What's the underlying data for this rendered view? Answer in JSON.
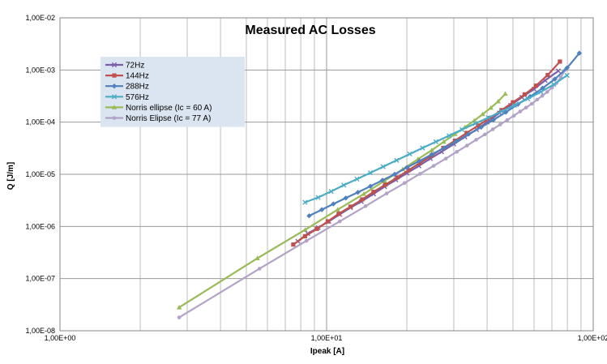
{
  "chart_data": {
    "type": "line",
    "title": "Measured AC Losses",
    "xlabel": "Ipeak [A]",
    "ylabel": "Q [J/m]",
    "xscale": "log",
    "yscale": "log",
    "xlim": [
      1,
      100
    ],
    "ylim": [
      1e-08,
      0.01
    ],
    "x_tick_labels": [
      "1,00E+00",
      "1,00E+01",
      "1,00E+02"
    ],
    "y_tick_labels": [
      "1,00E-08",
      "1,00E-07",
      "1,00E-06",
      "1,00E-05",
      "1,00E-04",
      "1,00E-03",
      "1,00E-02"
    ],
    "grid": true,
    "legend_position": "upper-left inside plot",
    "series": [
      {
        "name": "72Hz",
        "color": "#7B5EA7",
        "marker": "x",
        "x": [
          7.8,
          8.5,
          9.3,
          10.2,
          11.2,
          12.3,
          13.5,
          15.0,
          16.5,
          18.2,
          20.0,
          22.2,
          24.5,
          27.0,
          30.0,
          33.0,
          36.5,
          40.0,
          44.5,
          49.0,
          54.0,
          60.0,
          66.0,
          74.0
        ],
        "y": [
          5.2e-07,
          7.3e-07,
          9.5e-07,
          1.25e-06,
          1.7e-06,
          2.3e-06,
          3e-06,
          4.2e-06,
          5.8e-06,
          7.8e-06,
          1.05e-05,
          1.45e-05,
          2e-05,
          2.7e-05,
          3.8e-05,
          5.2e-05,
          7.2e-05,
          0.0001,
          0.00015,
          0.00021,
          0.0003,
          0.00043,
          0.00063,
          0.00096
        ]
      },
      {
        "name": "144Hz",
        "color": "#C0504D",
        "marker": "square",
        "x": [
          7.5,
          8.3,
          9.2,
          10.1,
          11.1,
          12.3,
          13.6,
          15.0,
          16.6,
          18.4,
          20.3,
          22.4,
          24.8,
          27.4,
          30.3,
          33.5,
          37.0,
          41.0,
          45.3,
          50.0,
          55.3,
          61.0,
          67.5,
          75.0
        ],
        "y": [
          4.5e-07,
          6.5e-07,
          9e-07,
          1.25e-06,
          1.75e-06,
          2.4e-06,
          3.3e-06,
          4.6e-06,
          6.3e-06,
          8.7e-06,
          1.2e-05,
          1.65e-05,
          2.3e-05,
          3.2e-05,
          4.4e-05,
          6.2e-05,
          8.6e-05,
          0.00012,
          0.00017,
          0.00024,
          0.00034,
          0.0005,
          0.0008,
          0.00145
        ]
      },
      {
        "name": "288Hz",
        "color": "#4F81BD",
        "marker": "diamond",
        "x": [
          8.6,
          9.6,
          10.6,
          11.8,
          13.1,
          14.6,
          16.2,
          18.0,
          20.0,
          22.3,
          24.8,
          27.6,
          30.7,
          34.1,
          38.0,
          42.2,
          47.0,
          52.2,
          58.0,
          64.6,
          71.8,
          79.8,
          88.7
        ],
        "y": [
          1.6e-06,
          2.1e-06,
          2.7e-06,
          3.5e-06,
          4.5e-06,
          5.9e-06,
          7.7e-06,
          1e-05,
          1.35e-05,
          1.8e-05,
          2.4e-05,
          3.2e-05,
          4.3e-05,
          5.9e-05,
          8e-05,
          0.00011,
          0.000155,
          0.00022,
          0.00031,
          0.00045,
          0.00067,
          0.0011,
          0.0021
        ]
      },
      {
        "name": "576Hz",
        "color": "#4BACC6",
        "marker": "x",
        "x": [
          8.3,
          9.3,
          10.4,
          11.6,
          13.0,
          14.6,
          16.3,
          18.3,
          20.5,
          22.9,
          25.7,
          28.8,
          32.2,
          36.1,
          40.4,
          45.3,
          50.7,
          56.8,
          63.6,
          71.2,
          79.8
        ],
        "y": [
          2.9e-06,
          3.6e-06,
          4.7e-06,
          6.2e-06,
          8.1e-06,
          1.07e-05,
          1.4e-05,
          1.85e-05,
          2.45e-05,
          3.2e-05,
          4.2e-05,
          5.5e-05,
          7.2e-05,
          9.4e-05,
          0.000122,
          0.00016,
          0.00021,
          0.00028,
          0.00038,
          0.00053,
          0.00079
        ]
      },
      {
        "name": "Norris ellipse (Ic = 60 A)",
        "color": "#9BBB59",
        "marker": "triangle",
        "x": [
          2.8,
          5.5,
          8.3,
          11.0,
          13.8,
          16.5,
          19.3,
          22.0,
          24.8,
          27.5,
          30.3,
          33.0,
          35.8,
          38.5,
          41.3,
          44.0,
          46.8
        ],
        "y": [
          2.8e-08,
          2.45e-07,
          8.6e-07,
          2.1e-06,
          4.2e-06,
          7.5e-06,
          1.25e-05,
          1.95e-05,
          2.9e-05,
          4.2e-05,
          5.9e-05,
          8e-05,
          0.000107,
          0.000142,
          0.000188,
          0.00025,
          0.00035
        ]
      },
      {
        "name": "Norris Elipse (Ic = 77 A)",
        "color": "#B3A2C7",
        "marker": "circle",
        "x": [
          2.8,
          5.6,
          8.4,
          11.2,
          14.0,
          16.8,
          19.6,
          22.4,
          25.2,
          28.0,
          30.8,
          33.6,
          36.4,
          39.2,
          42.0,
          44.8,
          47.6,
          50.4,
          53.2,
          56.0,
          58.8,
          61.6,
          64.4,
          67.2,
          70.0,
          72.8,
          75.6,
          78.4
        ],
        "y": [
          1.8e-08,
          1.55e-07,
          5.3e-07,
          1.25e-06,
          2.45e-06,
          4.3e-06,
          6.8e-06,
          1.02e-05,
          1.45e-05,
          2e-05,
          2.7e-05,
          3.55e-05,
          4.6e-05,
          5.8e-05,
          7.3e-05,
          9e-05,
          0.00011,
          0.000133,
          0.00016,
          0.00019,
          0.000225,
          0.00027,
          0.00032,
          0.00038,
          0.00046,
          0.00056,
          0.00072,
          0.001
        ]
      }
    ]
  }
}
